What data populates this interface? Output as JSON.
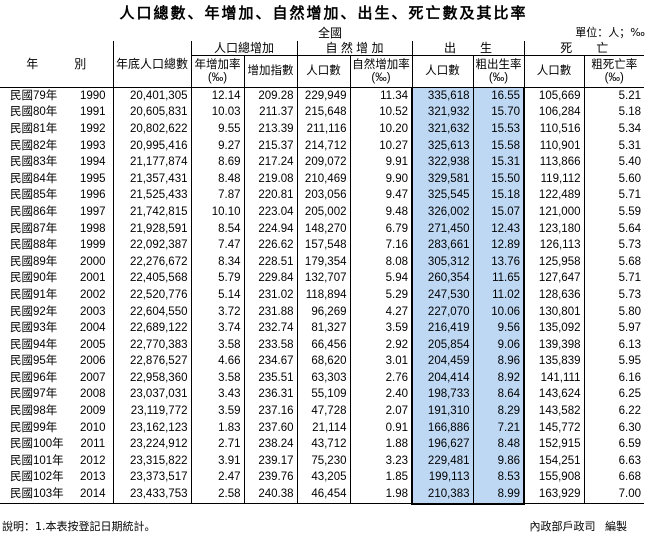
{
  "title": "人口總數、年增加、自然增加、出生、死亡數及其比率",
  "region": "全國",
  "unit": "單位：人；‰",
  "headers": {
    "year": "年　　　別",
    "total": "年底人口總數",
    "growth_group": "人口總增加",
    "growth_rate": "年增加率(‰)",
    "growth_index": "增加指數",
    "natural_group": "自 然 增 加",
    "natural_count": "人口數",
    "natural_rate": "自然增加率(‰)",
    "birth_group": "出　　生",
    "birth_count": "人口數",
    "birth_rate": "粗出生率(‰)",
    "death_group": "死　　亡",
    "death_count": "人口數",
    "death_rate": "粗死亡率(‰)"
  },
  "rows": [
    [
      "民國79年",
      "1990",
      "20,401,305",
      "12.14",
      "209.28",
      "229,949",
      "11.34",
      "335,618",
      "16.55",
      "105,669",
      "5.21"
    ],
    [
      "民國80年",
      "1991",
      "20,605,831",
      "10.03",
      "211.37",
      "215,648",
      "10.52",
      "321,932",
      "15.70",
      "106,284",
      "5.18"
    ],
    [
      "民國81年",
      "1992",
      "20,802,622",
      "9.55",
      "213.39",
      "211,116",
      "10.20",
      "321,632",
      "15.53",
      "110,516",
      "5.34"
    ],
    [
      "民國82年",
      "1993",
      "20,995,416",
      "9.27",
      "215.37",
      "214,712",
      "10.27",
      "325,613",
      "15.58",
      "110,901",
      "5.31"
    ],
    [
      "民國83年",
      "1994",
      "21,177,874",
      "8.69",
      "217.24",
      "209,072",
      "9.91",
      "322,938",
      "15.31",
      "113,866",
      "5.40"
    ],
    [
      "民國84年",
      "1995",
      "21,357,431",
      "8.48",
      "219.08",
      "210,469",
      "9.90",
      "329,581",
      "15.50",
      "119,112",
      "5.60"
    ],
    [
      "民國85年",
      "1996",
      "21,525,433",
      "7.87",
      "220.81",
      "203,056",
      "9.47",
      "325,545",
      "15.18",
      "122,489",
      "5.71"
    ],
    [
      "民國86年",
      "1997",
      "21,742,815",
      "10.10",
      "223.04",
      "205,002",
      "9.48",
      "326,002",
      "15.07",
      "121,000",
      "5.59"
    ],
    [
      "民國87年",
      "1998",
      "21,928,591",
      "8.54",
      "224.94",
      "148,270",
      "6.79",
      "271,450",
      "12.43",
      "123,180",
      "5.64"
    ],
    [
      "民國88年",
      "1999",
      "22,092,387",
      "7.47",
      "226.62",
      "157,548",
      "7.16",
      "283,661",
      "12.89",
      "126,113",
      "5.73"
    ],
    [
      "民國89年",
      "2000",
      "22,276,672",
      "8.34",
      "228.51",
      "179,354",
      "8.08",
      "305,312",
      "13.76",
      "125,958",
      "5.68"
    ],
    [
      "民國90年",
      "2001",
      "22,405,568",
      "5.79",
      "229.84",
      "132,707",
      "5.94",
      "260,354",
      "11.65",
      "127,647",
      "5.71"
    ],
    [
      "民國91年",
      "2002",
      "22,520,776",
      "5.14",
      "231.02",
      "118,894",
      "5.29",
      "247,530",
      "11.02",
      "128,636",
      "5.73"
    ],
    [
      "民國92年",
      "2003",
      "22,604,550",
      "3.72",
      "231.88",
      "96,269",
      "4.27",
      "227,070",
      "10.06",
      "130,801",
      "5.80"
    ],
    [
      "民國93年",
      "2004",
      "22,689,122",
      "3.74",
      "232.74",
      "81,327",
      "3.59",
      "216,419",
      "9.56",
      "135,092",
      "5.97"
    ],
    [
      "民國94年",
      "2005",
      "22,770,383",
      "3.58",
      "233.58",
      "66,456",
      "2.92",
      "205,854",
      "9.06",
      "139,398",
      "6.13"
    ],
    [
      "民國95年",
      "2006",
      "22,876,527",
      "4.66",
      "234.67",
      "68,620",
      "3.01",
      "204,459",
      "8.96",
      "135,839",
      "5.95"
    ],
    [
      "民國96年",
      "2007",
      "22,958,360",
      "3.58",
      "235.51",
      "63,303",
      "2.76",
      "204,414",
      "8.92",
      "141,111",
      "6.16"
    ],
    [
      "民國97年",
      "2008",
      "23,037,031",
      "3.43",
      "236.31",
      "55,109",
      "2.40",
      "198,733",
      "8.64",
      "143,624",
      "6.25"
    ],
    [
      "民國98年",
      "2009",
      "23,119,772",
      "3.59",
      "237.16",
      "47,728",
      "2.07",
      "191,310",
      "8.29",
      "143,582",
      "6.22"
    ],
    [
      "民國99年",
      "2010",
      "23,162,123",
      "1.83",
      "237.60",
      "21,114",
      "0.91",
      "166,886",
      "7.21",
      "145,772",
      "6.30"
    ],
    [
      "民國100年",
      "2011",
      "23,224,912",
      "2.71",
      "238.24",
      "43,712",
      "1.88",
      "196,627",
      "8.48",
      "152,915",
      "6.59"
    ],
    [
      "民國101年",
      "2012",
      "23,315,822",
      "3.91",
      "239.17",
      "75,230",
      "3.23",
      "229,481",
      "9.86",
      "154,251",
      "6.63"
    ],
    [
      "民國102年",
      "2013",
      "23,373,517",
      "2.47",
      "239.76",
      "43,205",
      "1.85",
      "199,113",
      "8.53",
      "155,908",
      "6.68"
    ],
    [
      "民國103年",
      "2014",
      "23,433,753",
      "2.58",
      "240.38",
      "46,454",
      "1.98",
      "210,383",
      "8.99",
      "163,929",
      "7.00"
    ]
  ],
  "footer": {
    "note": "說明：1.本表按登記日期統計。",
    "editor": "內政部戶政司 編製"
  },
  "colors": {
    "selection": "#bed8f4"
  }
}
